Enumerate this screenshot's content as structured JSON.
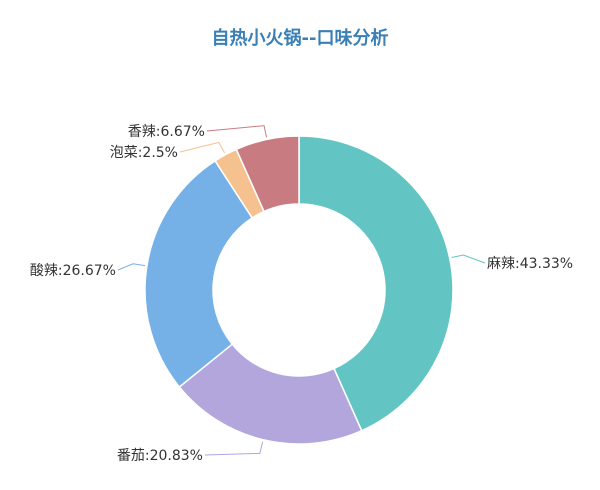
{
  "chart_data": {
    "type": "pie",
    "variant": "donut",
    "title": "自热小火锅--口味分析",
    "categories": [
      "麻辣",
      "番茄",
      "酸辣",
      "泡菜",
      "香辣"
    ],
    "values": [
      43.33,
      20.83,
      26.67,
      2.5,
      6.67
    ],
    "labels": [
      "麻辣:43.33%",
      "番茄:20.83%",
      "酸辣:26.67%",
      "泡菜:2.5%",
      "香辣:6.67%"
    ],
    "colors": [
      "#62c5c4",
      "#b2a6dd",
      "#75b0e6",
      "#f5c28f",
      "#c97b82"
    ],
    "unit": "%",
    "legend": "none"
  }
}
